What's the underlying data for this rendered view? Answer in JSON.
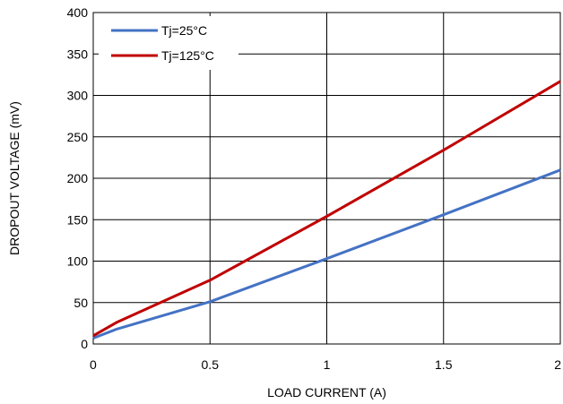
{
  "chart_data": {
    "type": "line",
    "title": "",
    "xlabel": "LOAD CURRENT (A)",
    "ylabel": "DROPOUT VOLTAGE (mV)",
    "xlim": [
      0,
      2
    ],
    "ylim": [
      0,
      400
    ],
    "xticks": [
      0,
      0.5,
      1,
      1.5,
      2
    ],
    "xtick_labels": [
      "0",
      "0.5",
      "1",
      "1.5",
      "2"
    ],
    "yticks": [
      0,
      50,
      100,
      150,
      200,
      250,
      300,
      350,
      400
    ],
    "ytick_labels": [
      "0",
      "50",
      "100",
      "150",
      "200",
      "250",
      "300",
      "350",
      "400"
    ],
    "grid": true,
    "legend_position": "top-left",
    "series": [
      {
        "name": "Tj=25°C",
        "color": "#4472C4",
        "x": [
          0,
          0.1,
          0.5,
          1,
          1.5,
          2
        ],
        "y": [
          7,
          18,
          51,
          103,
          156,
          210
        ]
      },
      {
        "name": "Tj=125°C",
        "color": "#C00000",
        "x": [
          0,
          0.1,
          0.5,
          1,
          1.5,
          2
        ],
        "y": [
          10,
          26,
          77,
          154,
          234,
          317
        ]
      }
    ]
  }
}
